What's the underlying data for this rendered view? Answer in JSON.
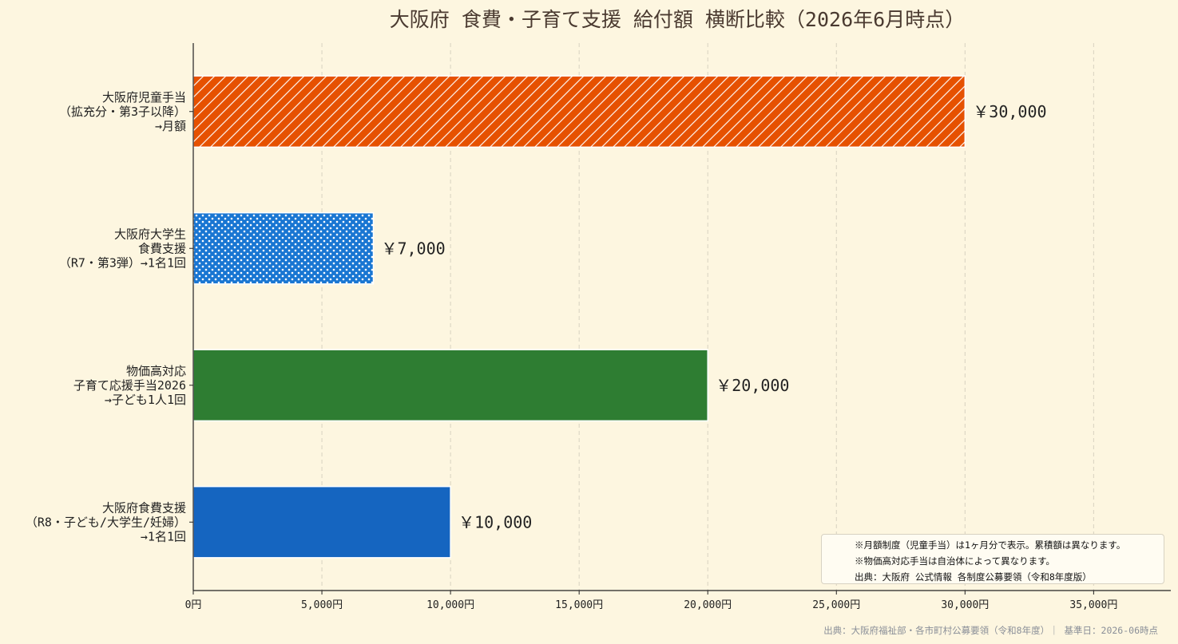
{
  "chart_data": {
    "type": "bar",
    "orientation": "horizontal",
    "title": "大阪府 食費・子育て支援 給付額 横断比較（2026年6月時点）",
    "categories": [
      [
        "大阪府児童手当",
        "（拡充分・第3子以降）",
        "→月額"
      ],
      [
        "大阪府大学生",
        "食費支援",
        "（R7・第3弾）→1名1回"
      ],
      [
        "物価高対応",
        "子育て応援手当2026",
        "→子ども1人1回"
      ],
      [
        "大阪府食費支援",
        "（R8・子ども/大学生/妊婦）",
        "→1名1回"
      ]
    ],
    "values": [
      30000,
      7000,
      20000,
      10000
    ],
    "value_labels": [
      "￥30,000",
      "￥7,000",
      "￥20,000",
      "￥10,000"
    ],
    "colors": [
      "#e65100",
      "#1976d2",
      "#2e7d32",
      "#1565c0"
    ],
    "patterns": [
      "diagonal-hatch",
      "dots",
      "none",
      "none"
    ],
    "x_ticks": [
      0,
      5000,
      10000,
      15000,
      20000,
      25000,
      30000,
      35000
    ],
    "x_tick_labels": [
      "0円",
      "5,000円",
      "10,000円",
      "15,000円",
      "20,000円",
      "25,000円",
      "30,000円",
      "35,000円"
    ],
    "xlim": [
      0,
      38000
    ],
    "grid": "vertical-dashed"
  },
  "notes": [
    "※月額制度（児童手当）は1ヶ月分で表示。累積額は異なります。",
    "※物価高対応手当は自治体によって異なります。",
    "出典：大阪府 公式情報 各制度公募要領（令和8年度版）"
  ],
  "source": "出典：大阪府福祉部・各市町村公募要領（令和8年度）｜ 基準日：2026-06時点"
}
